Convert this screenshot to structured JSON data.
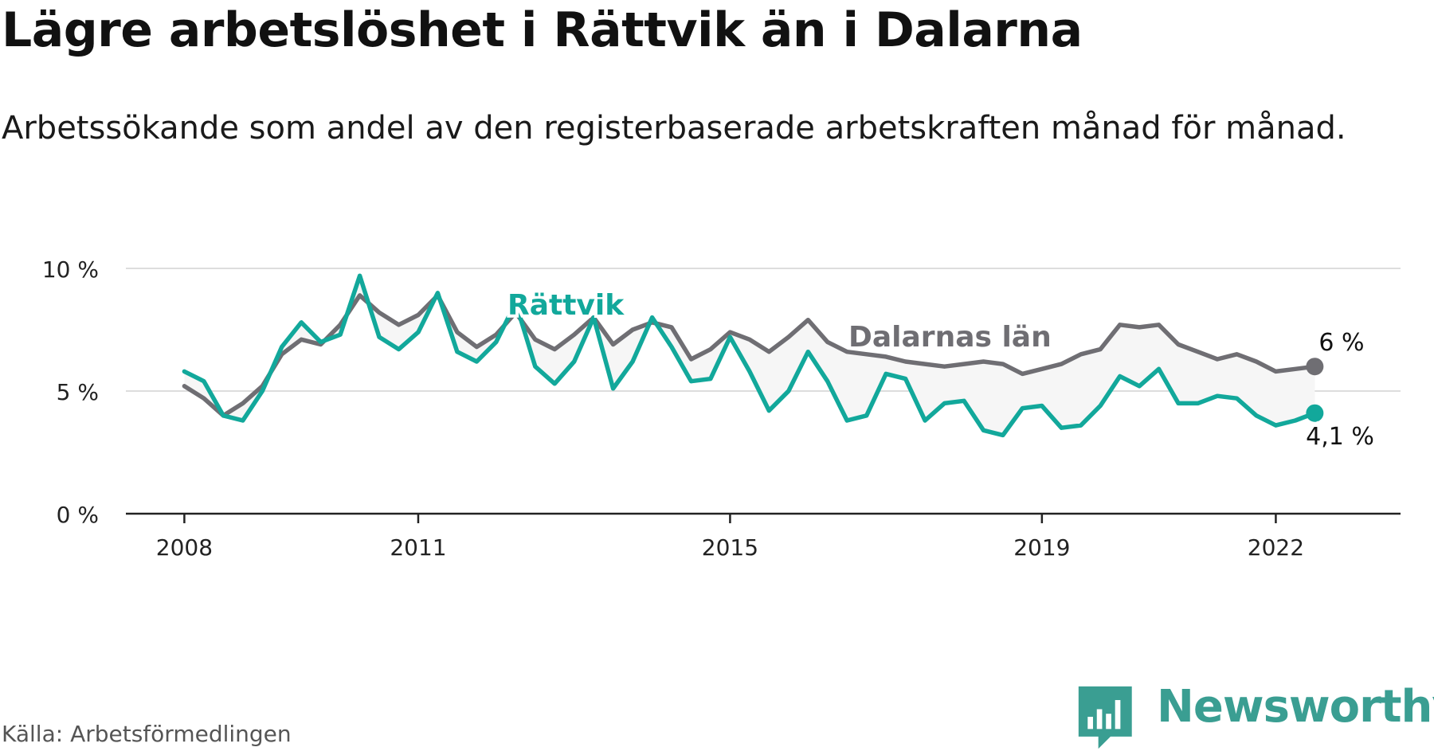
{
  "title": "Lägre arbetslöshet i Rättvik än i Dalarna",
  "subtitle": "Arbetssökande som andel av den registerbaserade arbetskraften månad för månad.",
  "source": "Källa: Arbetsförmedlingen",
  "brand": "Newsworthy",
  "colors": {
    "rattvik": "#12a89b",
    "dalarna": "#6f6e73",
    "band": "#f6f6f6",
    "grid": "#dddddd",
    "axis": "#222222",
    "brand": "#3a9e92"
  },
  "chart_data": {
    "type": "line",
    "title": "Lägre arbetslöshet i Rättvik än i Dalarna",
    "xlabel": "",
    "ylabel": "",
    "x_range": [
      2007.25,
      2023.6
    ],
    "ylim": [
      0,
      10
    ],
    "y_ticks": [
      0,
      5,
      10
    ],
    "y_tick_labels": [
      "0 %",
      "5 %",
      "10 %"
    ],
    "x_ticks": [
      2008,
      2011,
      2015,
      2019,
      2022
    ],
    "x_tick_labels": [
      "2008",
      "2011",
      "2015",
      "2019",
      "2022"
    ],
    "start": 2008.0,
    "step": 0.25,
    "series": [
      {
        "name": "Dalarnas län",
        "label": "Dalarnas län",
        "end_label": "6 %",
        "values": [
          5.2,
          4.7,
          4.0,
          4.5,
          5.2,
          6.5,
          7.1,
          6.9,
          7.7,
          8.9,
          8.2,
          7.7,
          8.1,
          8.9,
          7.4,
          6.8,
          7.3,
          8.2,
          7.1,
          6.7,
          7.3,
          8.0,
          6.9,
          7.5,
          7.8,
          7.6,
          6.3,
          6.7,
          7.4,
          7.1,
          6.6,
          7.2,
          7.9,
          7.0,
          6.6,
          6.5,
          6.4,
          6.2,
          6.1,
          6.0,
          6.1,
          6.2,
          6.1,
          5.7,
          5.9,
          6.1,
          6.5,
          6.7,
          7.7,
          7.6,
          7.7,
          6.9,
          6.6,
          6.3,
          6.5,
          6.2,
          5.8,
          5.9,
          6.0
        ],
        "color": "#6f6e73"
      },
      {
        "name": "Rättvik",
        "label": "Rättvik",
        "end_label": "4,1 %",
        "values": [
          5.8,
          5.4,
          4.0,
          3.8,
          5.0,
          6.8,
          7.8,
          7.0,
          7.3,
          9.7,
          7.2,
          6.7,
          7.4,
          9.0,
          6.6,
          6.2,
          7.0,
          8.6,
          6.0,
          5.3,
          6.2,
          8.0,
          5.1,
          6.2,
          8.0,
          6.8,
          5.4,
          5.5,
          7.2,
          5.8,
          4.2,
          5.0,
          6.6,
          5.4,
          3.8,
          4.0,
          5.7,
          5.5,
          3.8,
          4.5,
          4.6,
          3.4,
          3.2,
          4.3,
          4.4,
          3.5,
          3.6,
          4.4,
          5.6,
          5.2,
          5.9,
          4.5,
          4.5,
          4.8,
          4.7,
          4.0,
          3.6,
          3.8,
          4.1
        ],
        "color": "#12a89b"
      }
    ],
    "annotations": [
      {
        "text": "Rättvik",
        "series": "Rättvik"
      },
      {
        "text": "Dalarnas län",
        "series": "Dalarnas län"
      },
      {
        "text": "6 %",
        "series": "Dalarnas län",
        "at": "last"
      },
      {
        "text": "4,1 %",
        "series": "Rättvik",
        "at": "last"
      }
    ]
  }
}
